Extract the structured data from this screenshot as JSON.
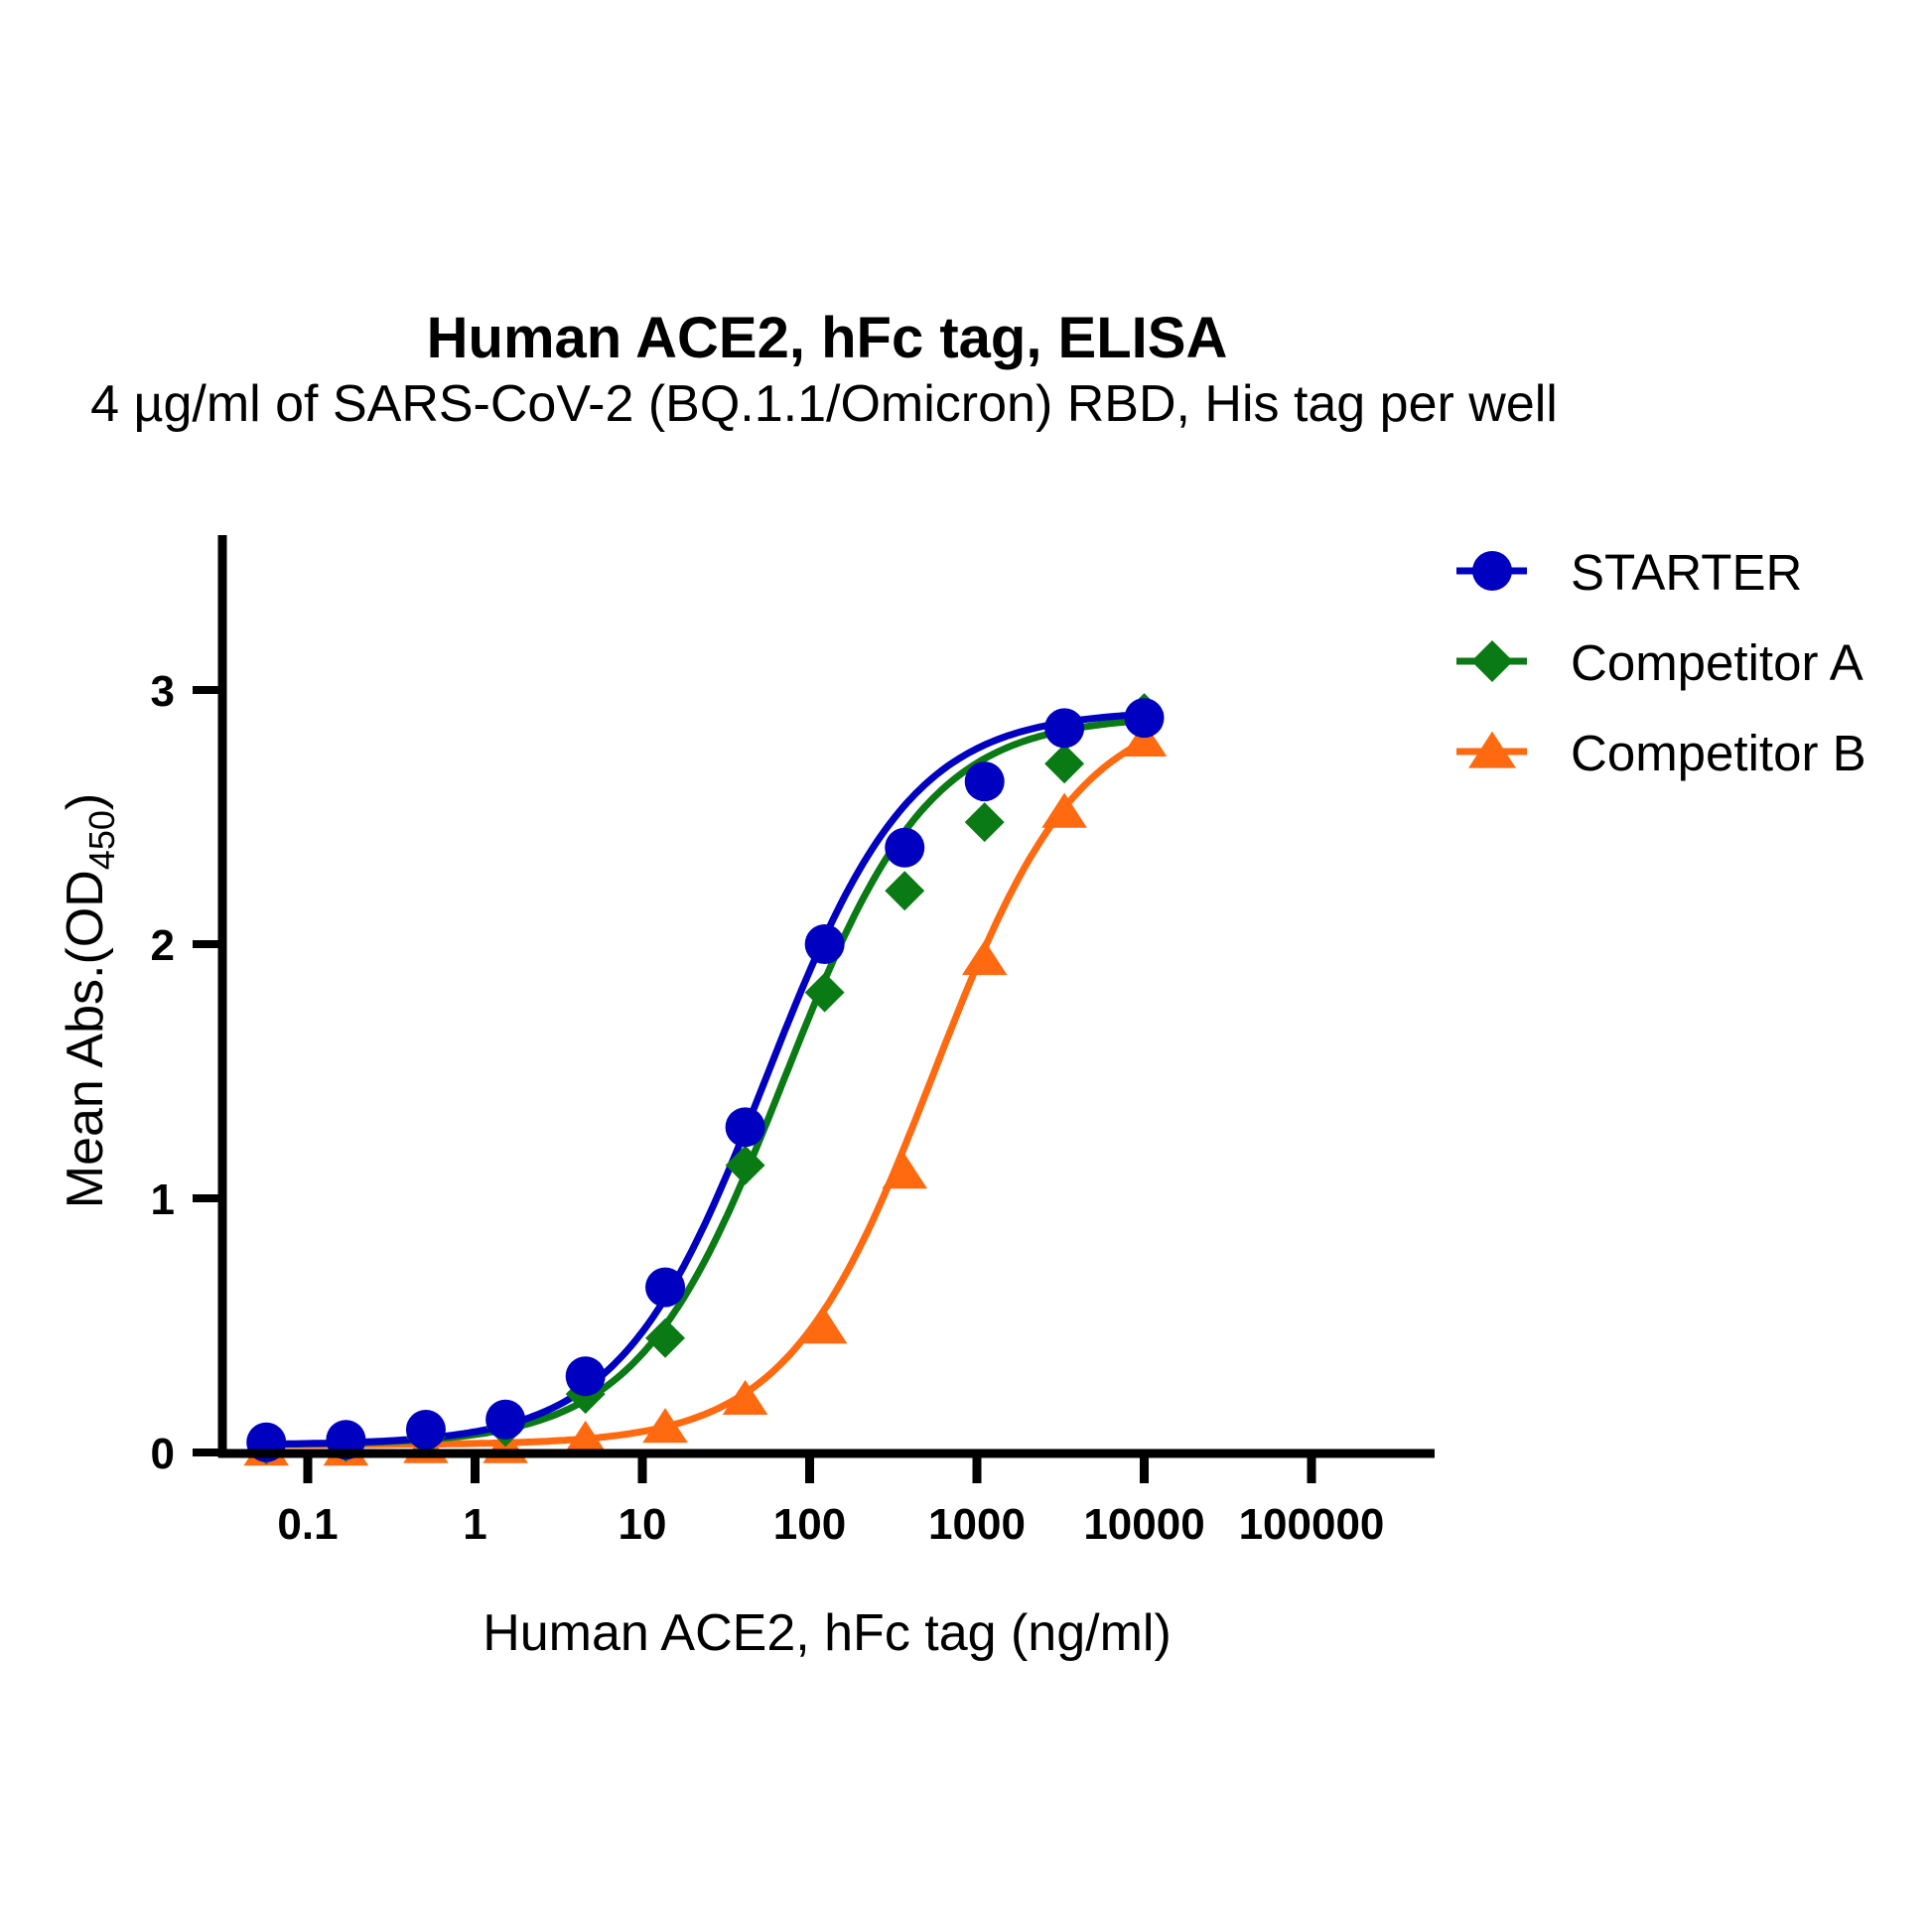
{
  "chart_data": {
    "type": "scatter",
    "title": "Human ACE2, hFc tag, ELISA",
    "subtitle": "4 µg/ml of SARS-CoV-2 (BQ.1.1/Omicron) RBD, His tag per well",
    "xlabel": "Human ACE2, hFc tag (ng/ml)",
    "ylabel_main": "Mean Abs.(OD",
    "ylabel_sub": "450",
    "ylabel_end": ")",
    "xscale": "log",
    "xlim": [
      0.04,
      300000
    ],
    "ylim": [
      0,
      3.6
    ],
    "x_ticks": [
      0.1,
      1,
      10,
      100,
      1000,
      10000,
      100000
    ],
    "x_tick_labels": [
      "0.1",
      "1",
      "10",
      "100",
      "1000",
      "10000",
      "100000"
    ],
    "y_ticks": [
      0,
      1,
      2,
      3
    ],
    "y_tick_labels": [
      "0",
      "1",
      "2",
      "3"
    ],
    "grid": false,
    "legend_position": "top-right",
    "x": [
      0.0565,
      0.169,
      0.508,
      1.52,
      4.57,
      13.7,
      41.2,
      123,
      370,
      1111,
      3333,
      10000
    ],
    "series": [
      {
        "name": "STARTER",
        "color": "#0000C0",
        "marker": "circle",
        "values": [
          0.04,
          0.05,
          0.09,
          0.13,
          0.3,
          0.65,
          1.28,
          2.0,
          2.38,
          2.64,
          2.85,
          2.89
        ],
        "fit": {
          "bottom": 0.03,
          "top": 2.92,
          "ec50": 55,
          "hill": 1.0
        }
      },
      {
        "name": "Competitor A",
        "color": "#0A7A14",
        "marker": "diamond",
        "values": [
          0.03,
          0.04,
          0.06,
          0.1,
          0.23,
          0.45,
          1.13,
          1.81,
          2.21,
          2.48,
          2.71,
          2.91
        ],
        "fit": {
          "bottom": 0.03,
          "top": 2.9,
          "ec50": 70,
          "hill": 1.0
        }
      },
      {
        "name": "Competitor B",
        "color": "#FF6A10",
        "marker": "triangle",
        "values": [
          0.01,
          0.01,
          0.02,
          0.02,
          0.05,
          0.1,
          0.21,
          0.49,
          1.1,
          1.94,
          2.52,
          2.8
        ],
        "fit": {
          "bottom": 0.03,
          "top": 2.95,
          "ec50": 550,
          "hill": 1.0
        }
      }
    ]
  }
}
